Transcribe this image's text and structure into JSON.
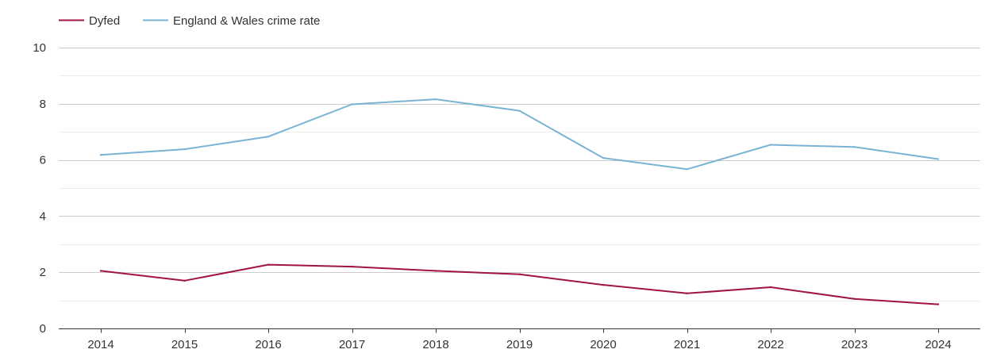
{
  "chart_data": {
    "type": "line",
    "title": "",
    "xlabel": "",
    "ylabel": "",
    "categories": [
      "2014",
      "2015",
      "2016",
      "2017",
      "2018",
      "2019",
      "2020",
      "2021",
      "2022",
      "2023",
      "2024"
    ],
    "ylim": [
      0,
      10
    ],
    "yticks": [
      0,
      2,
      4,
      6,
      8,
      10
    ],
    "grid": true,
    "legend_position": "top-left",
    "series": [
      {
        "name": "Dyfed",
        "color": "#a0153e",
        "values": [
          2.05,
          1.7,
          2.27,
          2.2,
          2.05,
          1.93,
          1.55,
          1.25,
          1.47,
          1.05,
          0.86
        ]
      },
      {
        "name": "England & Wales crime rate",
        "color": "#7ab3d4",
        "values": [
          6.18,
          6.38,
          6.83,
          7.98,
          8.16,
          7.75,
          6.07,
          5.67,
          6.54,
          6.46,
          6.03
        ]
      }
    ]
  }
}
